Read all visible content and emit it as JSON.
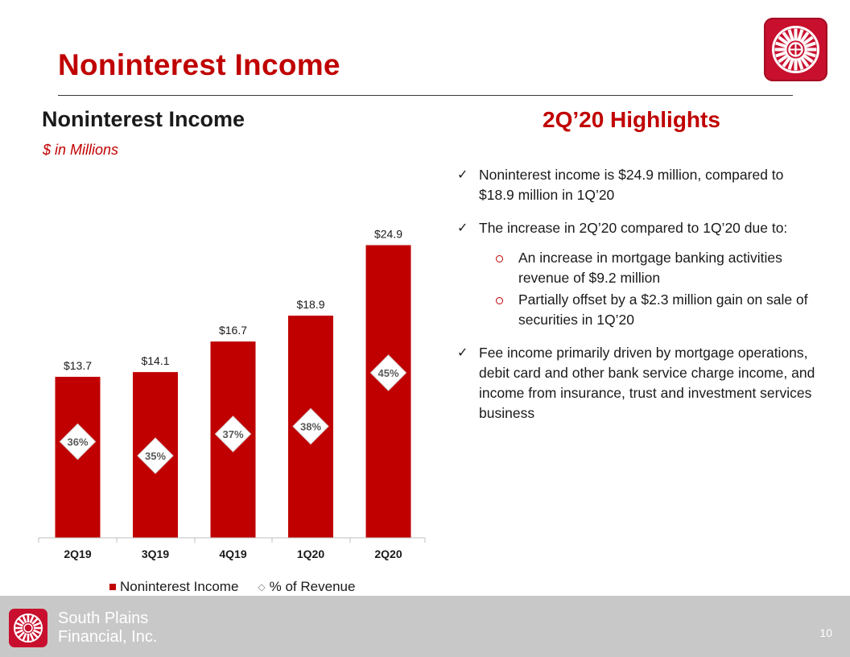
{
  "page": {
    "title": "Noninterest Income",
    "page_number": "10"
  },
  "left_panel": {
    "title": "Noninterest Income",
    "units": "$ in Millions"
  },
  "chart_data": {
    "type": "bar",
    "categories": [
      "2Q19",
      "3Q19",
      "4Q19",
      "1Q20",
      "2Q20"
    ],
    "series": [
      {
        "name": "Noninterest Income",
        "values": [
          13.7,
          14.1,
          16.7,
          18.9,
          24.9
        ],
        "color": "#c00000"
      },
      {
        "name": "% of Revenue",
        "values": [
          36,
          35,
          37,
          38,
          45
        ],
        "unit": "%",
        "marker": "diamond"
      }
    ],
    "value_labels": [
      "$13.7",
      "$14.1",
      "$16.7",
      "$18.9",
      "$24.9"
    ],
    "percent_labels": [
      "36%",
      "35%",
      "37%",
      "38%",
      "45%"
    ],
    "legend_position": "bottom",
    "grid": false,
    "ylim": [
      0,
      27
    ]
  },
  "legend": {
    "bar_label": "Noninterest Income",
    "diamond_label": "% of Revenue"
  },
  "highlights": {
    "title": "2Q’20 Highlights",
    "bullet1": "Noninterest income is $24.9 million, compared to $18.9 million in 1Q’20",
    "bullet2": "The increase in 2Q’20 compared to 1Q’20 due to:",
    "sub1": "An increase in mortgage banking activities revenue of $9.2 million",
    "sub2": "Partially offset by a $2.3 million gain on sale of securities in 1Q’20",
    "bullet3": "Fee income primarily driven by mortgage operations, debit card and other bank service charge income, and income from insurance, trust and investment services business",
    "check_glyph": "✓"
  },
  "footer": {
    "company_line1": "South Plains",
    "company_line2": "Financial, Inc."
  },
  "icons": {
    "logo": "sunburst-logo-icon",
    "check": "check-icon",
    "sub_bullet": "circle-bullet-icon"
  }
}
